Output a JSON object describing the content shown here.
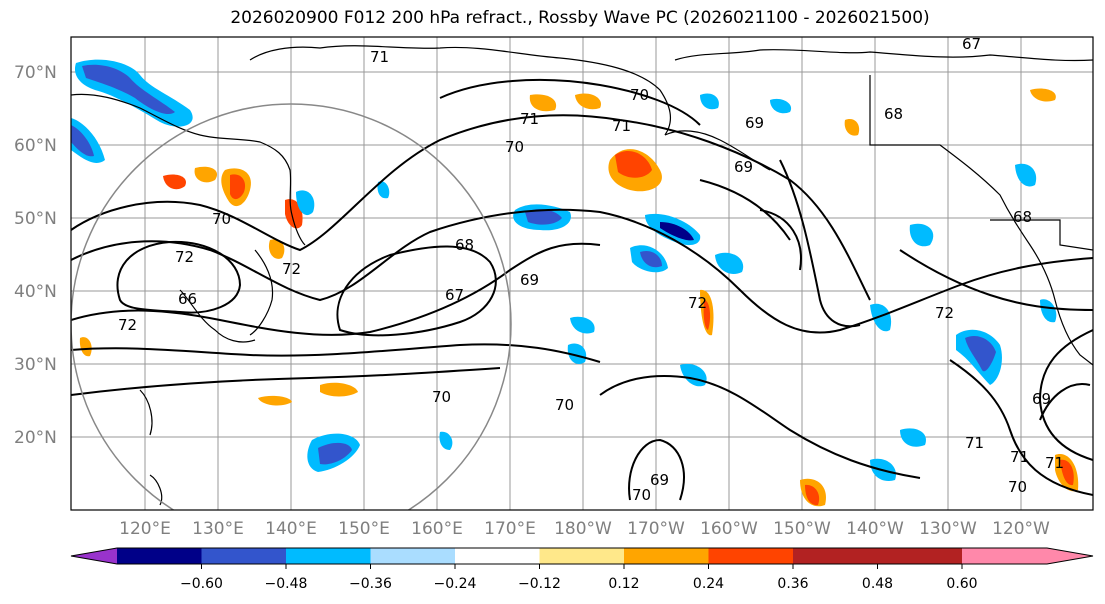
{
  "title": "2026020900 F012 200 hPa refract., Rossby Wave PC (2026021100 - 2026021500)",
  "lat_labels": [
    "70°N",
    "60°N",
    "50°N",
    "40°N",
    "30°N",
    "20°N"
  ],
  "lon_labels": [
    "120°E",
    "130°E",
    "140°E",
    "150°E",
    "160°E",
    "170°E",
    "180°W",
    "170°W",
    "160°W",
    "150°W",
    "140°W",
    "130°W",
    "120°W"
  ],
  "contour_labels": [
    "71",
    "67",
    "70",
    "71",
    "70",
    "69",
    "68",
    "72",
    "68",
    "69",
    "70",
    "70",
    "69",
    "69",
    "72",
    "72",
    "71",
    "71",
    "70",
    "70",
    "69",
    "71",
    "68",
    "67",
    "72",
    "72",
    "70",
    "71",
    "66"
  ],
  "colorbar": {
    "colors": [
      "#9933cc",
      "#000088",
      "#3355cc",
      "#00bbff",
      "#aaddff",
      "#ffffff",
      "#ffe88a",
      "#ffa500",
      "#ff4400",
      "#b22222",
      "#ff88aa"
    ],
    "ticks": [
      "−0.60",
      "−0.48",
      "−0.36",
      "−0.24",
      "−0.12",
      "0.12",
      "0.24",
      "0.36",
      "0.48",
      "0.60"
    ]
  },
  "legend_colors": {
    "contour": "#000000",
    "coast": "#000000",
    "grid": "#999999",
    "circle": "#888888"
  }
}
